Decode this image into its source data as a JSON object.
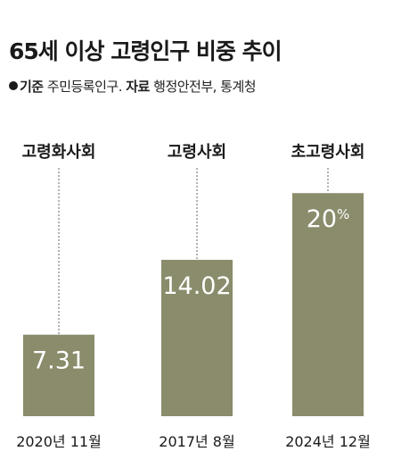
{
  "title": "65세 이상 고령인구 비중 추이",
  "meta": {
    "basis_label": "기준",
    "basis_value": "주민등록인구.",
    "source_label": "자료",
    "source_value": "행정안전부, 통계청"
  },
  "colors": {
    "bar": "#8a8c6b",
    "text": "#1a1a1a",
    "value_text": "#ffffff"
  },
  "chart_data": {
    "type": "bar",
    "title": "65세 이상 고령인구 비중 추이",
    "categories": [
      "2020년 11월",
      "2017년 8월",
      "2024년 12월"
    ],
    "annotations": [
      "고령화사회",
      "고령사회",
      "초고령사회"
    ],
    "values": [
      7.31,
      14.02,
      20
    ],
    "value_labels": [
      "7.31",
      "14.02",
      "20"
    ],
    "value_suffix": "%",
    "ylim": [
      0,
      22.5
    ],
    "grid": false,
    "legend": "none"
  }
}
